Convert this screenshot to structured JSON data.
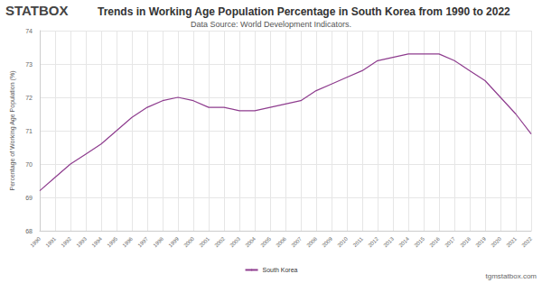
{
  "chart_data": {
    "type": "line",
    "title": "Trends in Working Age Population Percentage in South Korea from 1990 to 2022",
    "subtitle": "Data Source: World Development Indicators.",
    "logo": "STATBOX",
    "watermark": "tgmstatbox.com",
    "y_label": "Percentage of Working Age Population (%)",
    "categories": [
      "1990",
      "1991",
      "1992",
      "1993",
      "1994",
      "1995",
      "1996",
      "1997",
      "1998",
      "1999",
      "2000",
      "2001",
      "2002",
      "2003",
      "2004",
      "2005",
      "2006",
      "2007",
      "2008",
      "2009",
      "2010",
      "2011",
      "2012",
      "2013",
      "2014",
      "2015",
      "2016",
      "2017",
      "2018",
      "2019",
      "2020",
      "2021",
      "2022"
    ],
    "series": [
      {
        "name": "South Korea",
        "color": "#8e3c8e",
        "values": [
          69.2,
          69.6,
          70.0,
          70.3,
          70.6,
          71.0,
          71.4,
          71.7,
          71.9,
          72.0,
          71.9,
          71.7,
          71.7,
          71.6,
          71.6,
          71.7,
          71.8,
          71.9,
          72.2,
          72.4,
          72.6,
          72.8,
          73.1,
          73.2,
          73.3,
          73.3,
          73.3,
          73.1,
          72.8,
          72.5,
          72.0,
          71.5,
          70.9
        ]
      }
    ],
    "ylim": [
      68,
      74
    ],
    "yticks": [
      68,
      69,
      70,
      71,
      72,
      73,
      74
    ],
    "grid": true,
    "legend": "bottom"
  }
}
